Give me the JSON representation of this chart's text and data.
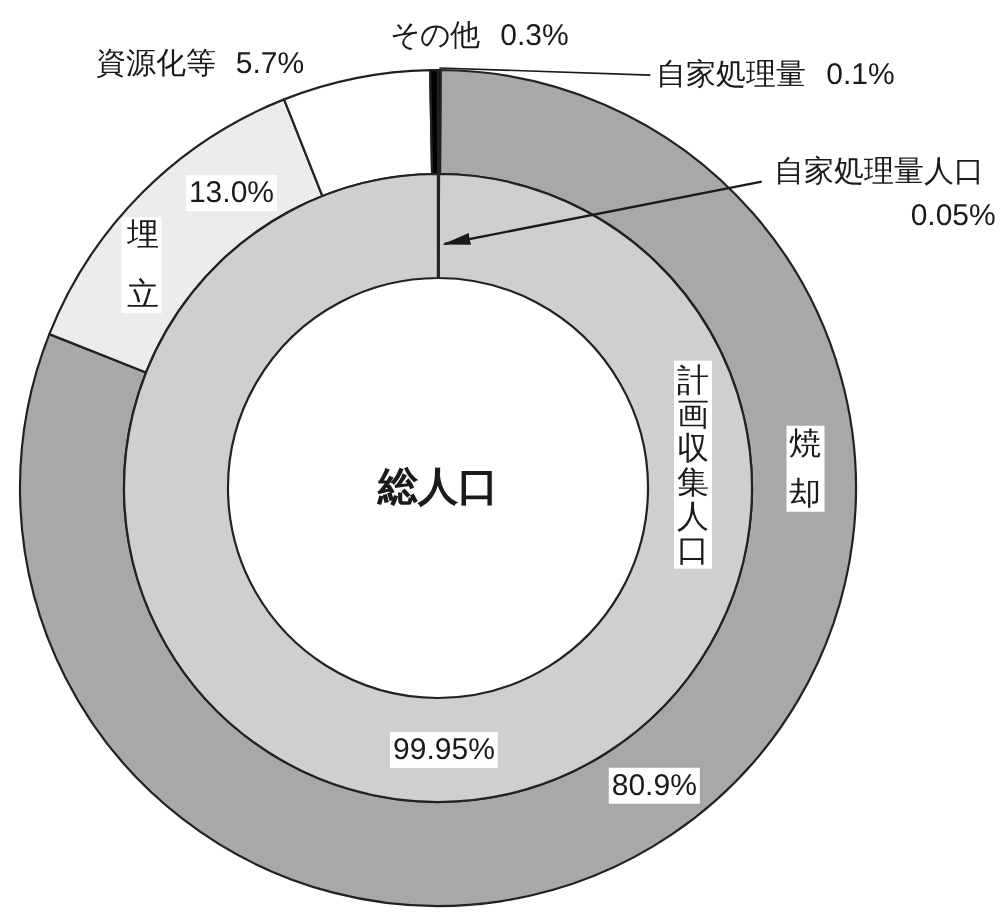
{
  "chart_data": [
    {
      "type": "donut",
      "categories": [
        "自家処理量",
        "焼却",
        "埋立",
        "資源化等",
        "その他"
      ],
      "values": [
        0.1,
        80.9,
        13.0,
        5.7,
        0.3
      ],
      "value_labels": [
        "0.1%",
        "80.9%",
        "13.0%",
        "5.7%",
        "0.3%"
      ],
      "colors": [
        "#000000",
        "#a8a8a8",
        "#ececec",
        "#ffffff",
        "#000000"
      ]
    },
    {
      "type": "donut",
      "title": "総人口",
      "categories": [
        "自家処理量人口",
        "計画収集人口"
      ],
      "values": [
        0.05,
        99.95
      ],
      "value_labels": [
        "0.05%",
        "99.95%"
      ],
      "colors": [
        "#000000",
        "#cfcfcf"
      ]
    }
  ]
}
